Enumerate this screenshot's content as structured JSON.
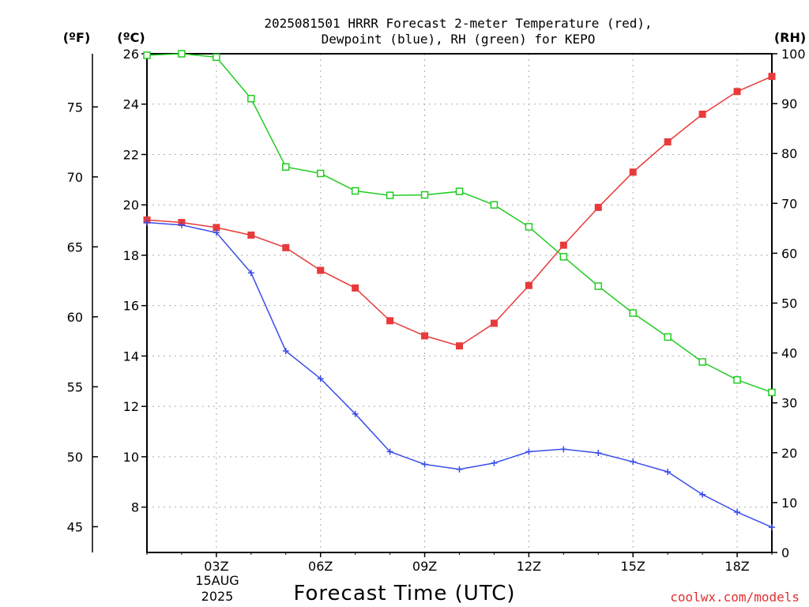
{
  "chart_data": {
    "type": "line",
    "title_line1": "2025081501 HRRR Forecast 2-meter Temperature (red),",
    "title_line2": "Dewpoint (blue), RH (green) for KEPO",
    "xlabel": "Forecast Time (UTC)",
    "credit": "coolwx.com/models",
    "unit_f": "(ºF)",
    "unit_c": "(ºC)",
    "unit_rh": "(RH)",
    "date_day": "15AUG",
    "date_year": "2025",
    "x_hours": [
      1,
      2,
      3,
      4,
      5,
      6,
      7,
      8,
      9,
      10,
      11,
      12,
      13,
      14,
      15,
      16,
      17,
      18,
      19
    ],
    "x_range": [
      1,
      19
    ],
    "x_ticks": [
      {
        "hour": 3,
        "label": "03Z"
      },
      {
        "hour": 6,
        "label": "06Z"
      },
      {
        "hour": 9,
        "label": "09Z"
      },
      {
        "hour": 12,
        "label": "12Z"
      },
      {
        "hour": 15,
        "label": "15Z"
      },
      {
        "hour": 18,
        "label": "18Z"
      }
    ],
    "y_celsius_range": [
      6.2,
      26
    ],
    "y_celsius_ticks": [
      "8",
      "10",
      "12",
      "14",
      "16",
      "18",
      "20",
      "22",
      "24",
      "26"
    ],
    "y_fahrenheit_ticks": [
      "45",
      "50",
      "55",
      "60",
      "65",
      "70",
      "75"
    ],
    "y_rh_range": [
      0,
      100
    ],
    "y_rh_ticks": [
      "0",
      "10",
      "20",
      "30",
      "40",
      "50",
      "60",
      "70",
      "80",
      "90",
      "100"
    ],
    "grid": true,
    "series": [
      {
        "name": "Temperature",
        "axis": "celsius",
        "color": "#e83a3a",
        "marker": "filled-square",
        "values": [
          19.4,
          19.3,
          19.1,
          18.8,
          18.3,
          17.4,
          16.7,
          15.4,
          14.8,
          14.4,
          15.3,
          16.8,
          18.4,
          19.9,
          21.3,
          22.5,
          23.6,
          24.5,
          25.1
        ]
      },
      {
        "name": "Dewpoint",
        "axis": "celsius",
        "color": "#3a4ee8",
        "marker": "plus",
        "values": [
          19.3,
          19.2,
          18.9,
          17.3,
          14.2,
          13.1,
          11.7,
          10.2,
          9.7,
          9.5,
          9.75,
          10.2,
          10.3,
          10.15,
          9.8,
          9.4,
          8.5,
          7.8,
          7.2
        ]
      },
      {
        "name": "Relative Humidity",
        "axis": "rh",
        "color": "#22cc22",
        "marker": "open-square",
        "values": [
          99.7,
          100,
          99.3,
          91,
          77.3,
          76,
          72.5,
          71.6,
          71.7,
          72.4,
          69.7,
          65.3,
          59.3,
          53.4,
          48,
          43.2,
          38.2,
          34.6,
          32.1
        ]
      }
    ]
  }
}
